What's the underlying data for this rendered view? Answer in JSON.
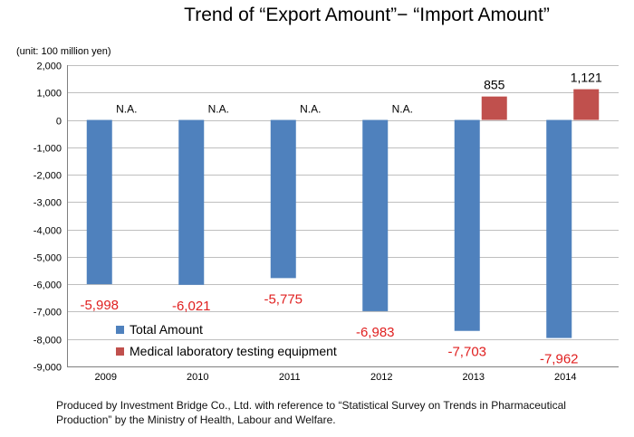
{
  "chart_data": {
    "type": "bar",
    "title": "Trend of “Export Amount”− “Import Amount”",
    "unit_label": "(unit: 100 million yen)",
    "categories": [
      "2009",
      "2010",
      "2011",
      "2012",
      "2013",
      "2014"
    ],
    "ylim": [
      -9000,
      2000
    ],
    "yticks": [
      2000,
      1000,
      0,
      -1000,
      -2000,
      -3000,
      -4000,
      -5000,
      -6000,
      -7000,
      -8000,
      -9000
    ],
    "ytick_labels": [
      "2,000",
      "1,000",
      "0",
      "-1,000",
      "-2,000",
      "-3,000",
      "-4,000",
      "-5,000",
      "-6,000",
      "-7,000",
      "-8,000",
      "-9,000"
    ],
    "grid": true,
    "series": [
      {
        "name": "Total Amount",
        "color": "#4F81BD",
        "values": [
          -5998,
          -6021,
          -5775,
          -6983,
          -7703,
          -7962
        ],
        "labels": [
          "-5,998",
          "-6,021",
          "-5,775",
          "-6,983",
          "-7,703",
          "-7,962"
        ],
        "label_color": "#E02020"
      },
      {
        "name": "Medical laboratory testing equipment",
        "color": "#C0504D",
        "values": [
          null,
          null,
          null,
          null,
          855,
          1121
        ],
        "labels": [
          "N.A.",
          "N.A.",
          "N.A.",
          "N.A.",
          "855",
          "1,121"
        ],
        "label_color": "#000000"
      }
    ],
    "legend_position": "bottom-left-inside"
  },
  "footer": {
    "line1": "Produced by Investment Bridge Co., Ltd. with reference to “Statistical Survey on Trends in Pharmaceutical",
    "line2": "Production” by the Ministry of Health, Labour and Welfare."
  }
}
